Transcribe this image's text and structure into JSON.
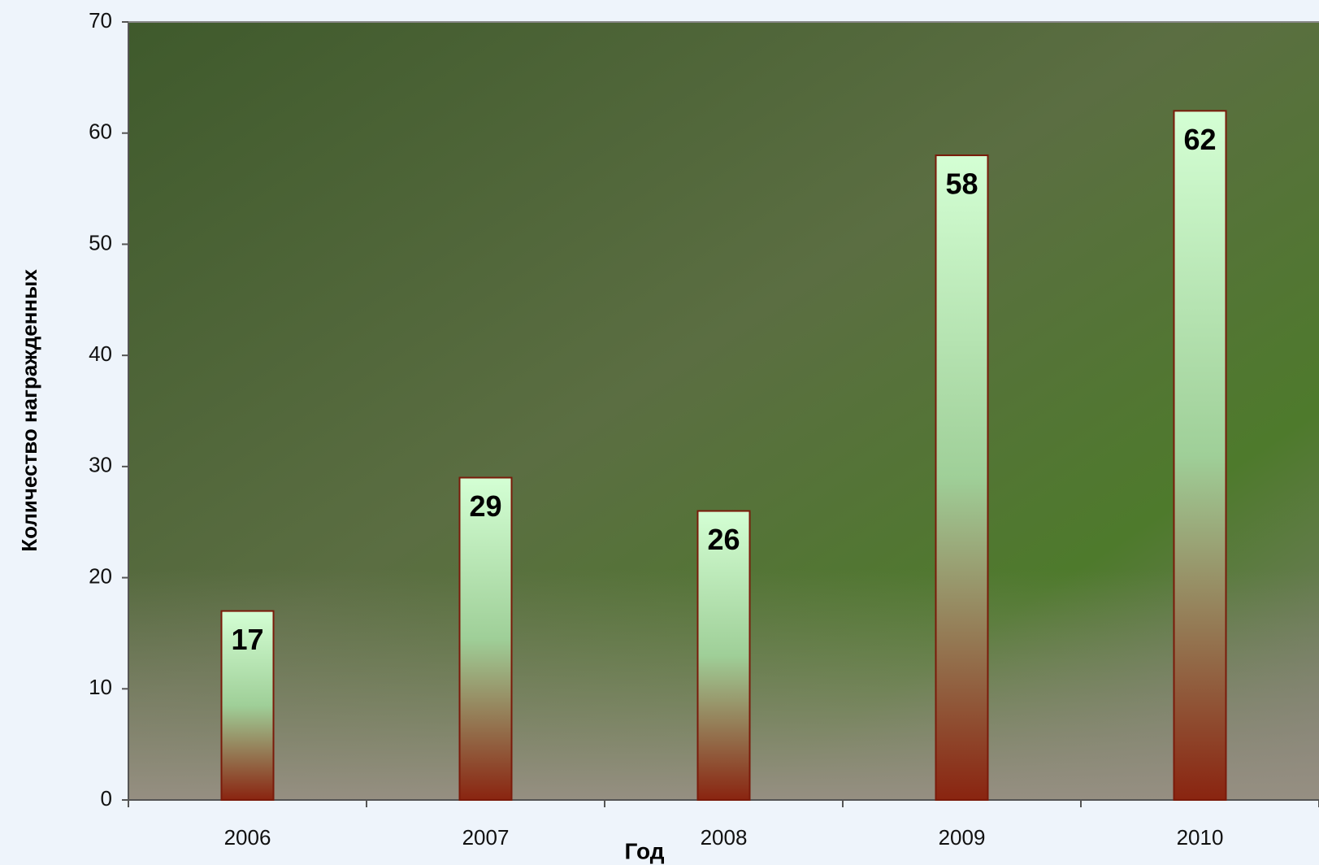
{
  "chart_data": {
    "type": "bar",
    "categories": [
      "2006",
      "2007",
      "2008",
      "2009",
      "2010"
    ],
    "values": [
      17,
      29,
      26,
      58,
      62
    ],
    "xlabel": "Год",
    "ylabel": "Количество награжденных",
    "ylim": [
      0,
      70
    ],
    "yticks": [
      0,
      10,
      20,
      30,
      40,
      50,
      60,
      70
    ],
    "color_top": "#d4ffd4",
    "color_bottom": "#8a2410",
    "edge_color": "#7a1a0a"
  }
}
